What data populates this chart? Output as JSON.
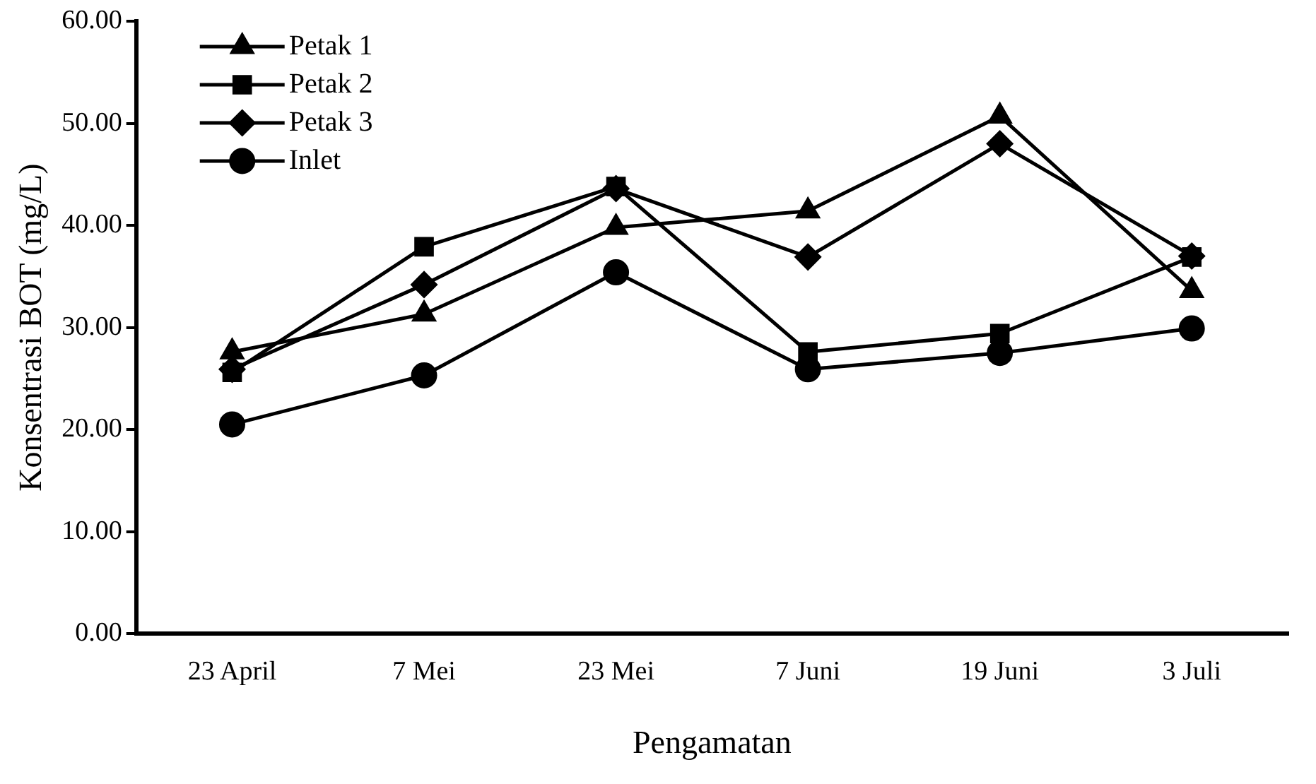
{
  "chart_data": {
    "type": "line",
    "xlabel": "Pengamatan",
    "ylabel": "Konsentrasi BOT (mg/L)",
    "categories": [
      "23 April",
      "7 Mei",
      "23 Mei",
      "7 Juni",
      "19 Juni",
      "3 Juli"
    ],
    "series": [
      {
        "name": "Petak 1",
        "color": "#000000",
        "marker": "triangle",
        "values": [
          27.6,
          31.3,
          39.8,
          41.4,
          50.7,
          33.6
        ]
      },
      {
        "name": "Petak 2",
        "color": "#000000",
        "marker": "square",
        "values": [
          25.6,
          37.9,
          43.8,
          27.6,
          29.4,
          36.9
        ]
      },
      {
        "name": "Petak 3",
        "color": "#000000",
        "marker": "diamond",
        "values": [
          25.9,
          34.2,
          43.6,
          36.9,
          48.0,
          37.0
        ]
      },
      {
        "name": "Inlet",
        "color": "#000000",
        "marker": "circle",
        "values": [
          20.5,
          25.3,
          35.4,
          25.9,
          27.5,
          29.9
        ]
      }
    ],
    "ylim": [
      0,
      60
    ],
    "yticks": [
      {
        "value": 0,
        "label": "0.00"
      },
      {
        "value": 10,
        "label": "10.00"
      },
      {
        "value": 20,
        "label": "20.00"
      },
      {
        "value": 30,
        "label": "30.00"
      },
      {
        "value": 40,
        "label": "40.00"
      },
      {
        "value": 50,
        "label": "50.00"
      },
      {
        "value": 60,
        "label": "60.00"
      }
    ],
    "grid": false,
    "legend": "top left",
    "line_style": "solid"
  }
}
